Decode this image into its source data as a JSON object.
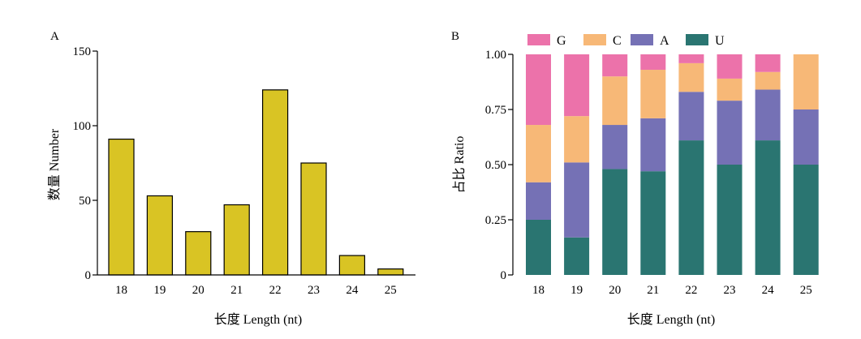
{
  "chart_data": [
    {
      "panel": "A",
      "type": "bar",
      "title": "",
      "xlabel": "长度 Length (nt)",
      "ylabel": "数量 Number",
      "categories": [
        "18",
        "19",
        "20",
        "21",
        "22",
        "23",
        "24",
        "25"
      ],
      "values": [
        91,
        53,
        29,
        47,
        124,
        75,
        13,
        4
      ],
      "ylim": [
        0,
        150
      ],
      "yticks": [
        "0",
        "50",
        "100",
        "150"
      ],
      "grid": false,
      "colors": {
        "bar": "#d9c424",
        "stroke": "#000000"
      }
    },
    {
      "panel": "B",
      "type": "bar",
      "stacked": true,
      "title": "",
      "xlabel": "长度 Length (nt)",
      "ylabel": "占比 Ratio",
      "categories": [
        "18",
        "19",
        "20",
        "21",
        "22",
        "23",
        "24",
        "25"
      ],
      "ylim": [
        0,
        1
      ],
      "yticks": [
        "0",
        "0.25",
        "0.50",
        "0.75",
        "1.00"
      ],
      "grid": false,
      "legend_position": "top",
      "series": [
        {
          "name": "U",
          "color": "#2a7571",
          "values": [
            0.25,
            0.17,
            0.48,
            0.47,
            0.61,
            0.5,
            0.61,
            0.5
          ]
        },
        {
          "name": "A",
          "color": "#7571b5",
          "values": [
            0.17,
            0.34,
            0.2,
            0.24,
            0.22,
            0.29,
            0.23,
            0.25
          ]
        },
        {
          "name": "C",
          "color": "#f7b877",
          "values": [
            0.26,
            0.21,
            0.22,
            0.22,
            0.13,
            0.1,
            0.08,
            0.25
          ]
        },
        {
          "name": "G",
          "color": "#ec72aa",
          "values": [
            0.32,
            0.28,
            0.1,
            0.07,
            0.04,
            0.11,
            0.08,
            0.0
          ]
        }
      ],
      "legend_order": [
        "G",
        "C",
        "A",
        "U"
      ]
    }
  ]
}
